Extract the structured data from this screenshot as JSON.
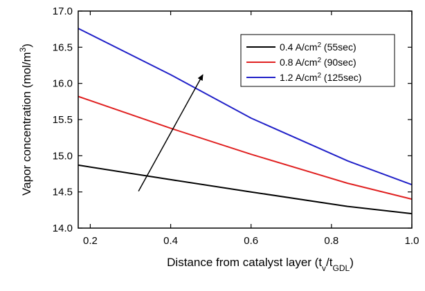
{
  "chart_data": {
    "type": "line",
    "x_axis": {
      "label_main": "Distance from catalyst layer (t",
      "label_sub1": "v",
      "label_mid": "/t",
      "label_sub2": "GDL",
      "label_end": ")",
      "range": [
        0.17,
        1.0
      ],
      "ticks": [
        "0.2",
        "0.4",
        "0.6",
        "0.8",
        "1.0"
      ]
    },
    "y_axis": {
      "label_main": "Vapor concentration (mol/m",
      "label_sup": "3",
      "label_end": ")",
      "range": [
        14.0,
        17.0
      ],
      "ticks": [
        "14.0",
        "14.5",
        "15.0",
        "15.5",
        "16.0",
        "16.5",
        "17.0"
      ]
    },
    "grid": false,
    "legend_position": "top-right",
    "series": [
      {
        "name_main": "0.4 A/cm",
        "name_sup": "2",
        "name_end": " (55sec)",
        "color": "#000000",
        "x": [
          0.17,
          0.4,
          0.6,
          0.84,
          1.0
        ],
        "y": [
          14.87,
          14.67,
          14.5,
          14.3,
          14.2
        ]
      },
      {
        "name_main": "0.8 A/cm",
        "name_sup": "2",
        "name_end": " (90sec)",
        "color": "#e02020",
        "x": [
          0.17,
          0.4,
          0.6,
          0.84,
          1.0
        ],
        "y": [
          15.82,
          15.38,
          15.02,
          14.62,
          14.4
        ]
      },
      {
        "name_main": "1.2 A/cm",
        "name_sup": "2",
        "name_end": " (125sec)",
        "color": "#2020c8",
        "x": [
          0.17,
          0.4,
          0.6,
          0.84,
          1.0
        ],
        "y": [
          16.76,
          16.12,
          15.52,
          14.93,
          14.6
        ]
      }
    ],
    "annotation_arrow": {
      "from": [
        0.32,
        14.51
      ],
      "to": [
        0.48,
        16.12
      ]
    }
  }
}
